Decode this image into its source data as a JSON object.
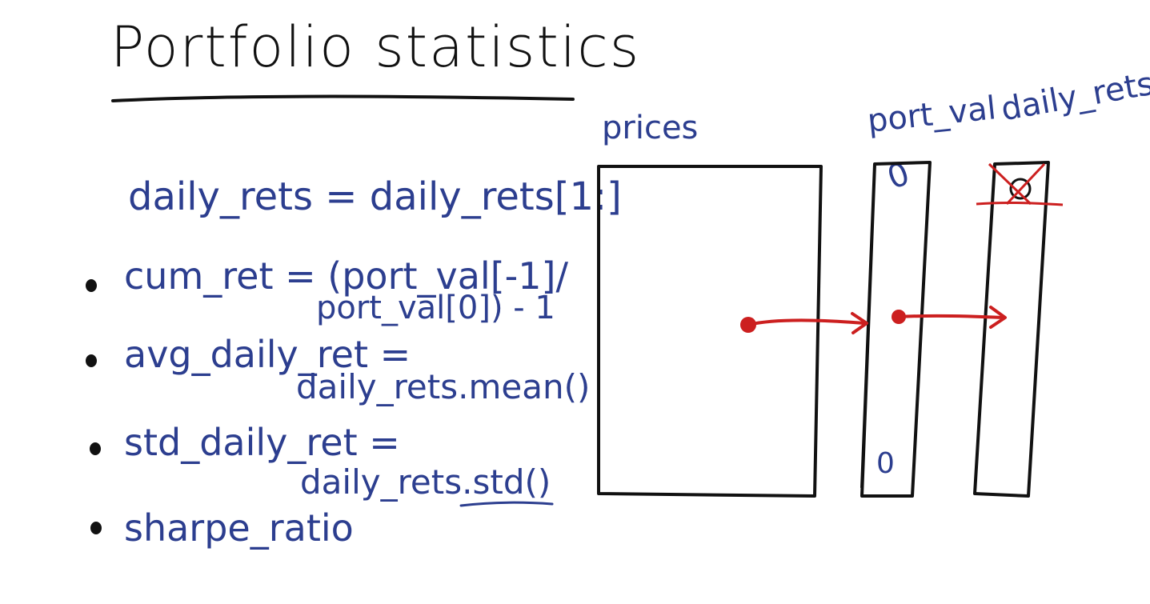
{
  "title": "Portfolio statistics",
  "formula_top": "daily_rets = daily_rets[1:]",
  "bullets": [
    {
      "line1": "cum_ret = (port_val[-1]/",
      "line2": "port_val[0]) - 1"
    },
    {
      "line1": "avg_daily_ret =",
      "line2": "daily_rets.mean()"
    },
    {
      "line1": "std_daily_ret =",
      "line2": "daily_rets.std()"
    },
    {
      "line1": "sharpe_ratio",
      "line2": ""
    }
  ],
  "diagram": {
    "prices_label": "prices",
    "port_val_label": "port_val",
    "daily_rets_label": "daily_rets",
    "port_val_top_value": "0",
    "port_val_bottom_value": "0",
    "colors": {
      "ink": "#111111",
      "blue_ink": "#2c3e8f",
      "red_ink": "#cc1f1f"
    }
  }
}
